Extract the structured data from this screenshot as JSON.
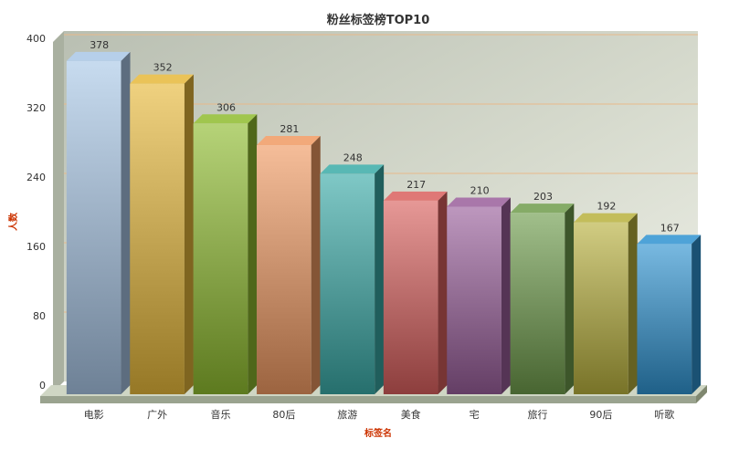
{
  "chart_data": {
    "type": "bar",
    "title": "粉丝标签榜TOP10",
    "xlabel": "标签名",
    "ylabel": "人数",
    "ylim": [
      0,
      400
    ],
    "yticks": [
      0,
      80,
      160,
      240,
      320,
      400
    ],
    "categories": [
      "电影",
      "广外",
      "音乐",
      "80后",
      "旅游",
      "美食",
      "宅",
      "旅行",
      "90后",
      "听歌"
    ],
    "values": [
      378,
      352,
      306,
      281,
      248,
      217,
      210,
      203,
      192,
      167
    ],
    "colors": [
      "#a9c7e6",
      "#e6b83a",
      "#8fbc2f",
      "#f09a62",
      "#3aaba7",
      "#d9605e",
      "#9a5f9b",
      "#6f9c4c",
      "#b8b13e",
      "#2f93d1"
    ],
    "grid": true,
    "legend": "none"
  }
}
